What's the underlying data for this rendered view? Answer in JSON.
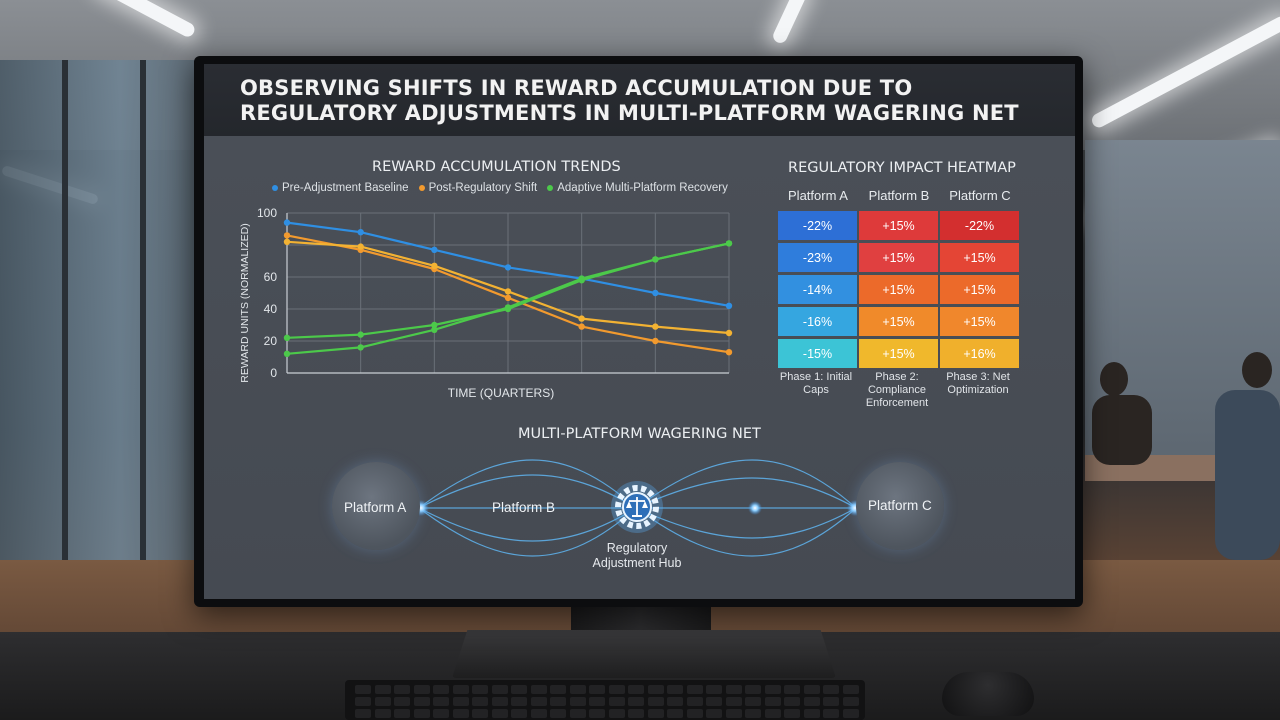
{
  "main_title": "OBSERVING SHIFTS IN REWARD ACCUMULATION DUE TO REGULATORY ADJUSTMENTS IN MULTI-PLATFORM WAGERING NET",
  "trends": {
    "title": "REWARD ACCUMULATION TRENDS",
    "legend": [
      {
        "label": "Pre-Adjustment Baseline",
        "color": "#2f8fe3"
      },
      {
        "label": "Post-Regulatory Shift",
        "color": "#f29a2e"
      },
      {
        "label": "Adaptive Multi-Platform Recovery",
        "color": "#4cc94a"
      }
    ]
  },
  "chart_data": {
    "type": "line",
    "title": "REWARD ACCUMULATION TRENDS",
    "xlabel": "TIME (QUARTERS)",
    "ylabel": "REWARD UNITS (NORMALIZED)",
    "ylim": [
      0,
      100
    ],
    "yticks": [
      0,
      20,
      40,
      60,
      100
    ],
    "x": [
      0,
      1,
      2,
      3,
      4,
      5,
      6
    ],
    "grid": true,
    "series": [
      {
        "name": "Pre-Adjustment Baseline",
        "color": "#2f8fe3",
        "values": [
          94,
          88,
          77,
          66,
          59,
          50,
          42
        ]
      },
      {
        "name": "Post-Regulatory Shift",
        "color": "#f29a2e",
        "values": [
          86,
          77,
          65,
          47,
          29,
          20,
          13
        ]
      },
      {
        "name": "Post-Regulatory Shift (upper)",
        "color": "#f2b233",
        "values": [
          82,
          79,
          67,
          51,
          34,
          29,
          25
        ]
      },
      {
        "name": "Adaptive Multi-Platform Recovery",
        "color": "#4cc94a",
        "values": [
          12,
          16,
          27,
          41,
          59,
          71,
          81
        ]
      },
      {
        "name": "Adaptive Multi-Platform Recovery (alt)",
        "color": "#4cc94a",
        "values": [
          22,
          24,
          30,
          40,
          58,
          71,
          81
        ]
      }
    ]
  },
  "heatmap": {
    "title": "REGULATORY IMPACT HEATMAP",
    "columns": [
      "Platform A",
      "Platform B",
      "Platform C"
    ],
    "rows": [
      [
        {
          "v": "-22%",
          "c": "#2d6fd6"
        },
        {
          "v": "+15%",
          "c": "#de3a3a"
        },
        {
          "v": "-22%",
          "c": "#d32f2f"
        }
      ],
      [
        {
          "v": "-23%",
          "c": "#2f7ddc"
        },
        {
          "v": "+15%",
          "c": "#e04040"
        },
        {
          "v": "+15%",
          "c": "#e44535"
        }
      ],
      [
        {
          "v": "-14%",
          "c": "#3290e0"
        },
        {
          "v": "+15%",
          "c": "#ec6a2a"
        },
        {
          "v": "+15%",
          "c": "#ec6a2a"
        }
      ],
      [
        {
          "v": "-16%",
          "c": "#35a6e0"
        },
        {
          "v": "+15%",
          "c": "#f08a2a"
        },
        {
          "v": "+15%",
          "c": "#f0872c"
        }
      ],
      [
        {
          "v": "-15%",
          "c": "#3cc4d6"
        },
        {
          "v": "+15%",
          "c": "#f0b82c"
        },
        {
          "v": "+16%",
          "c": "#f0b02c"
        }
      ]
    ],
    "phases": [
      "Phase 1: Initial Caps",
      "Phase 2: Compliance Enforcement",
      "Phase 3: Net Optimization"
    ]
  },
  "network": {
    "title": "MULTI-PLATFORM WAGERING NET",
    "node_a": "Platform A",
    "node_b": "Platform B",
    "node_c": "Platform C",
    "hub": "Regulatory Adjustment Hub",
    "hub_icon": "gear-scales-icon"
  }
}
